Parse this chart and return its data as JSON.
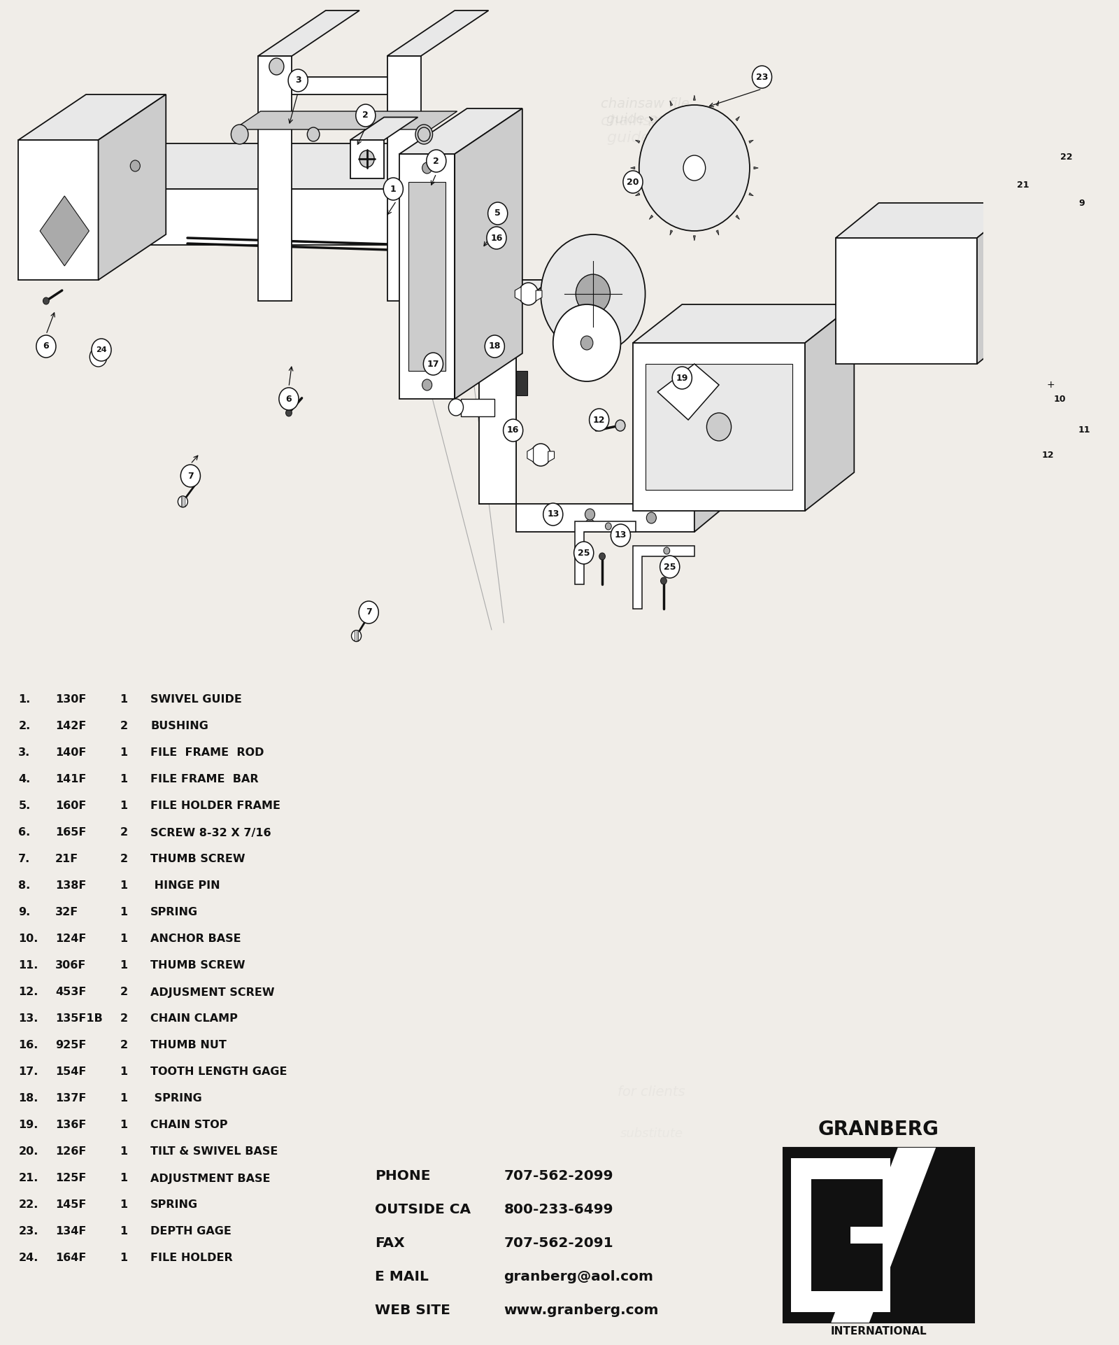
{
  "bg_color": "#f0ede8",
  "parts": [
    {
      "num": "1",
      "code": "130F",
      "qty": "1",
      "desc": "SWIVEL GUIDE"
    },
    {
      "num": "2",
      "code": "142F",
      "qty": "2",
      "desc": "BUSHING"
    },
    {
      "num": "3",
      "code": "140F",
      "qty": "1",
      "desc": "FILE  FRAME  ROD"
    },
    {
      "num": "4",
      "code": "141F",
      "qty": "1",
      "desc": "FILE FRAME  BAR"
    },
    {
      "num": "5",
      "code": "160F",
      "qty": "1",
      "desc": "FILE HOLDER FRAME"
    },
    {
      "num": "6",
      "code": "165F",
      "qty": "2",
      "desc": "SCREW 8-32 X 7/16"
    },
    {
      "num": "7",
      "code": "21F",
      "qty": "2",
      "desc": "THUMB SCREW"
    },
    {
      "num": "8",
      "code": "138F",
      "qty": "1",
      "desc": " HINGE PIN"
    },
    {
      "num": "9",
      "code": "32F",
      "qty": "1",
      "desc": "SPRING"
    },
    {
      "num": "10",
      "code": "124F",
      "qty": "1",
      "desc": "ANCHOR BASE"
    },
    {
      "num": "11",
      "code": "306F",
      "qty": "1",
      "desc": "THUMB SCREW"
    },
    {
      "num": "12",
      "code": "453F",
      "qty": "2",
      "desc": "ADJUSMENT SCREW"
    },
    {
      "num": "13",
      "code": "135F1B",
      "qty": "2",
      "desc": "CHAIN CLAMP"
    },
    {
      "num": "16",
      "code": "925F",
      "qty": "2",
      "desc": "THUMB NUT"
    },
    {
      "num": "17",
      "code": "154F",
      "qty": "1",
      "desc": "TOOTH LENGTH GAGE"
    },
    {
      "num": "18",
      "code": "137F",
      "qty": "1",
      "desc": " SPRING"
    },
    {
      "num": "19",
      "code": "136F",
      "qty": "1",
      "desc": "CHAIN STOP"
    },
    {
      "num": "20",
      "code": "126F",
      "qty": "1",
      "desc": "TILT & SWIVEL BASE"
    },
    {
      "num": "21",
      "code": "125F",
      "qty": "1",
      "desc": "ADJUSTMENT BASE"
    },
    {
      "num": "22",
      "code": "145F",
      "qty": "1",
      "desc": "SPRING"
    },
    {
      "num": "23",
      "code": "134F",
      "qty": "1",
      "desc": "DEPTH GAGE"
    },
    {
      "num": "24",
      "code": "164F",
      "qty": "1",
      "desc": "FILE HOLDER"
    }
  ],
  "contact": {
    "rows": [
      [
        "PHONE",
        "707-562-2099"
      ],
      [
        "OUTSIDE CA",
        "800-233-6499"
      ],
      [
        "FAX",
        "707-562-2091"
      ],
      [
        "E MAIL",
        "granberg@aol.com"
      ],
      [
        "WEB SITE",
        "www.granberg.com"
      ]
    ]
  },
  "brand": "GRANBERG",
  "brand2": "INTERNATIONAL",
  "ec": "#111111",
  "fc_light": "#e8e8e8",
  "fc_mid": "#cccccc",
  "fc_dark": "#aaaaaa"
}
